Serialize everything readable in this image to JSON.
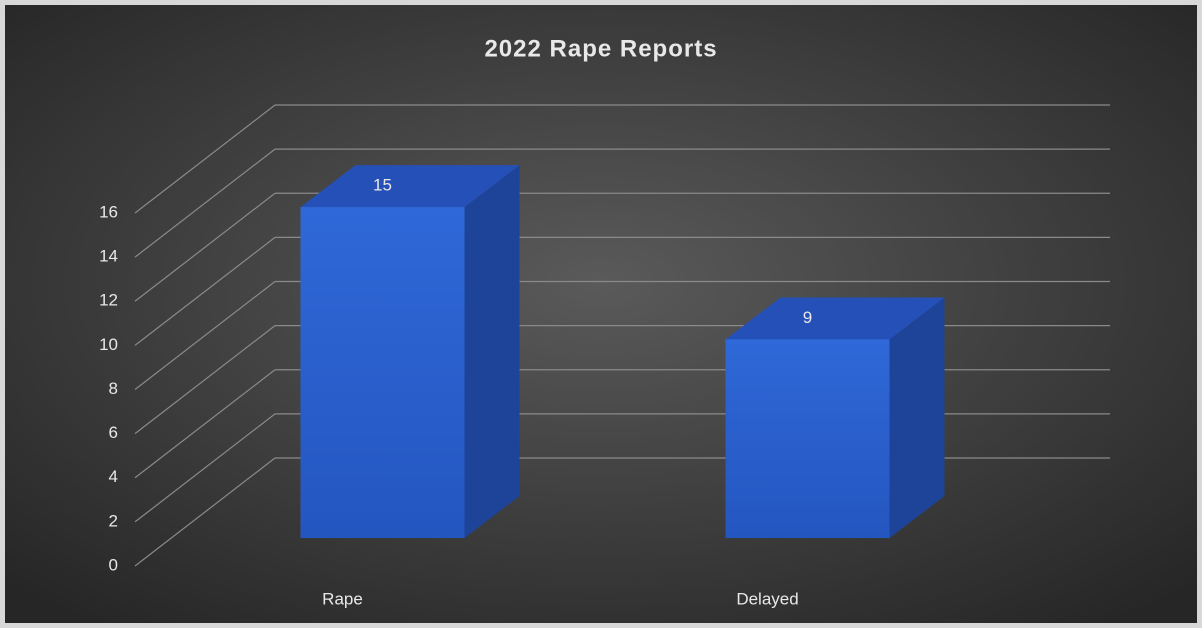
{
  "chart_data": {
    "type": "bar3d",
    "title": "2022 Rape Reports",
    "categories": [
      "Rape",
      "Delayed"
    ],
    "values": [
      15,
      9
    ],
    "color": "#2b62d0",
    "ylim": [
      0,
      16
    ],
    "yticks": [
      0,
      2,
      4,
      6,
      8,
      10,
      12,
      14,
      16
    ],
    "grid": true
  }
}
